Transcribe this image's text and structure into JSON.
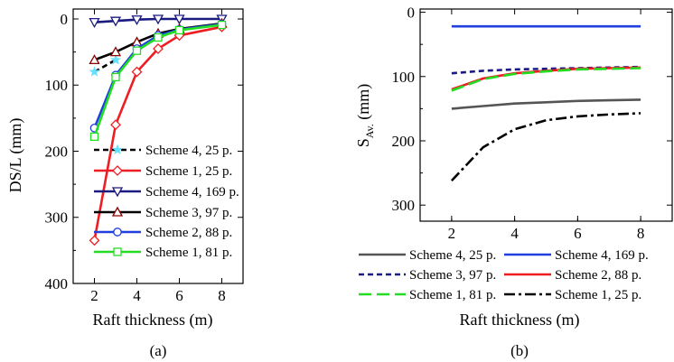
{
  "chart_data": [
    {
      "panel_label": "(a)",
      "type": "line",
      "xlabel": "Raft thickness (m)",
      "ylabel": "DS/L  (mm)",
      "xlim": [
        1,
        9
      ],
      "ylim": [
        400,
        -15
      ],
      "y_inverted": true,
      "x_ticks": [
        2,
        4,
        6,
        8
      ],
      "y_ticks": [
        0,
        100,
        200,
        300,
        400
      ],
      "legend_position": "lower-right",
      "series": [
        {
          "name": "Scheme 4, 25 p.",
          "color": "#000000",
          "dash": "dash",
          "marker": "star",
          "marker_color": "#66e0ff",
          "x": [
            2,
            3
          ],
          "y": [
            80,
            62
          ]
        },
        {
          "name": "Scheme 1, 25 p.",
          "color": "#ee1d23",
          "dash": "solid",
          "marker": "diamond",
          "marker_color": "#ee1d23",
          "x": [
            2,
            3,
            4,
            5,
            6,
            8
          ],
          "y": [
            335,
            160,
            80,
            45,
            25,
            12
          ]
        },
        {
          "name": "Scheme 4, 169 p.",
          "color": "#1a1a80",
          "dash": "solid",
          "marker": "triangle-down",
          "marker_color": "#1a1a80",
          "x": [
            2,
            3,
            4,
            5,
            6,
            8
          ],
          "y": [
            5,
            3,
            1,
            0,
            0,
            0
          ]
        },
        {
          "name": "Scheme 3, 97 p.",
          "color": "#000000",
          "dash": "solid",
          "marker": "triangle-up",
          "marker_color": "#8b0000",
          "x": [
            2,
            3,
            4,
            5,
            6,
            8
          ],
          "y": [
            62,
            50,
            35,
            22,
            15,
            7
          ]
        },
        {
          "name": "Scheme 2, 88 p.",
          "color": "#1f3fdf",
          "dash": "solid",
          "marker": "circle",
          "marker_color": "#1f3fdf",
          "x": [
            2,
            3,
            4,
            5,
            6,
            8
          ],
          "y": [
            165,
            85,
            45,
            25,
            16,
            8
          ]
        },
        {
          "name": "Scheme 1, 81 p.",
          "color": "#22dd22",
          "dash": "solid",
          "marker": "square",
          "marker_color": "#22dd22",
          "x": [
            2,
            3,
            4,
            5,
            6,
            8
          ],
          "y": [
            178,
            88,
            48,
            28,
            17,
            9
          ]
        }
      ]
    },
    {
      "panel_label": "(b)",
      "type": "line",
      "xlabel": "Raft thickness  (m)",
      "ylabel_main": "S",
      "ylabel_sub": "Av.",
      "ylabel_unit": "  (mm)",
      "xlim": [
        1,
        9
      ],
      "ylim": [
        325,
        -5
      ],
      "y_inverted": true,
      "x_ticks": [
        2,
        4,
        6,
        8
      ],
      "y_ticks": [
        0,
        100,
        200,
        300
      ],
      "legend_position": "bottom",
      "series": [
        {
          "name": "Scheme 4, 25 p.",
          "color": "#555555",
          "dash": "solid",
          "x": [
            2,
            3,
            4,
            5,
            6,
            7,
            8
          ],
          "y": [
            150,
            146,
            142,
            140,
            138,
            137,
            136
          ]
        },
        {
          "name": "Scheme 4, 169 p.",
          "color": "#1f3fdf",
          "dash": "solid",
          "x": [
            2,
            3,
            4,
            5,
            6,
            7,
            8
          ],
          "y": [
            22,
            22,
            22,
            22,
            22,
            22,
            22
          ]
        },
        {
          "name": "Scheme 3, 97 p.",
          "color": "#1a1a80",
          "dash": "dash",
          "x": [
            2,
            3,
            4,
            5,
            6,
            7,
            8
          ],
          "y": [
            95,
            91,
            89,
            88,
            87,
            86,
            85
          ]
        },
        {
          "name": "Scheme 2, 88 p.",
          "color": "#ee1d23",
          "dash": "solid",
          "x": [
            2,
            3,
            4,
            5,
            6,
            7,
            8
          ],
          "y": [
            120,
            103,
            95,
            91,
            88,
            87,
            86
          ]
        },
        {
          "name": "Scheme 1, 81 p.",
          "color": "#22dd22",
          "dash": "longdash",
          "x": [
            2,
            3,
            4,
            5,
            6,
            7,
            8
          ],
          "y": [
            122,
            104,
            96,
            92,
            89,
            88,
            87
          ]
        },
        {
          "name": "Scheme 1, 25 p.",
          "color": "#000000",
          "dash": "dashdot",
          "x": [
            2,
            3,
            4,
            5,
            6,
            7,
            8
          ],
          "y": [
            262,
            210,
            182,
            168,
            162,
            159,
            157
          ]
        }
      ]
    }
  ]
}
